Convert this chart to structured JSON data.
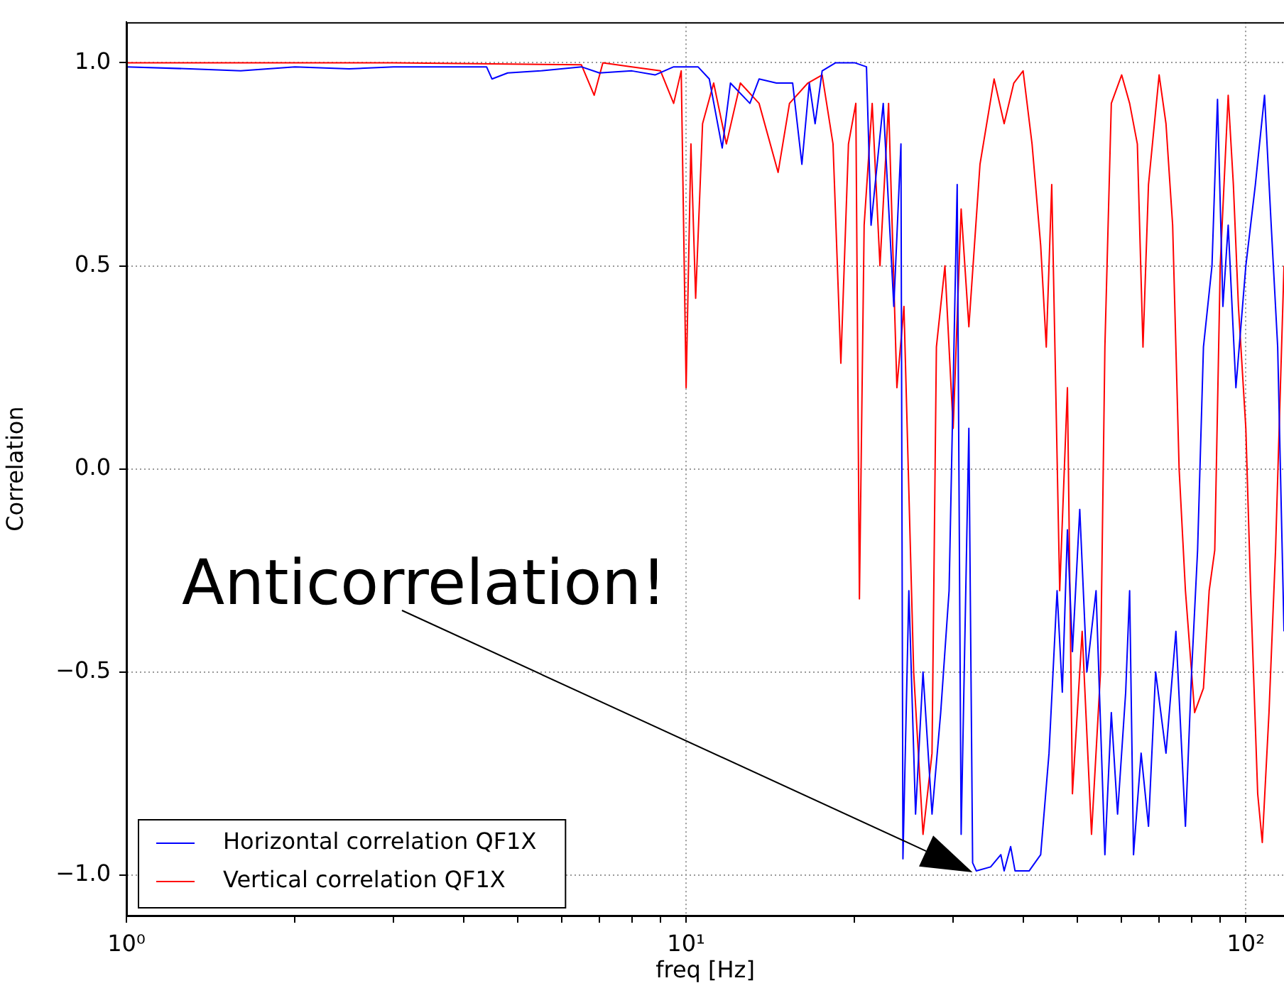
{
  "chart_data": {
    "type": "line",
    "xlabel": "freq [Hz]",
    "ylabel": "Correlation",
    "log": "x",
    "grid": true,
    "legend": "bottom left",
    "marker": "none",
    "line_style": "solid",
    "xlim": [
      1,
      117
    ],
    "ylim": [
      -1.1,
      1.1
    ],
    "xticks": [
      {
        "value": 1,
        "label": "10⁰"
      },
      {
        "value": 2,
        "label": null
      },
      {
        "value": 3,
        "label": null
      },
      {
        "value": 4,
        "label": null
      },
      {
        "value": 5,
        "label": null
      },
      {
        "value": 6,
        "label": null
      },
      {
        "value": 7,
        "label": null
      },
      {
        "value": 8,
        "label": null
      },
      {
        "value": 9,
        "label": null
      },
      {
        "value": 10,
        "label": "10¹"
      },
      {
        "value": 20,
        "label": null
      },
      {
        "value": 30,
        "label": null
      },
      {
        "value": 40,
        "label": null
      },
      {
        "value": 50,
        "label": null
      },
      {
        "value": 60,
        "label": null
      },
      {
        "value": 70,
        "label": null
      },
      {
        "value": 80,
        "label": null
      },
      {
        "value": 90,
        "label": null
      },
      {
        "value": 100,
        "label": "10²"
      }
    ],
    "yticks": [
      {
        "value": -1,
        "label": "−1.0"
      },
      {
        "value": -0.5,
        "label": "−0.5"
      },
      {
        "value": 0,
        "label": "0.0"
      },
      {
        "value": 0.5,
        "label": "0.5"
      },
      {
        "value": 1,
        "label": "1.0"
      }
    ],
    "annotations": [
      "Anticorrelation!"
    ],
    "series": [
      {
        "name": "Horizontal correlation QF1X",
        "color": "#0000ff",
        "x": [
          1,
          1.3,
          1.6,
          2,
          2.5,
          3,
          3.5,
          4,
          4.4,
          4.5,
          4.8,
          5.5,
          6.5,
          7,
          8,
          8.8,
          9.5,
          10.5,
          11,
          11.6,
          12,
          13,
          13.5,
          14.5,
          15.5,
          16.1,
          16.6,
          17,
          17.5,
          18.5,
          20,
          21,
          21.4,
          22.5,
          23.5,
          24.2,
          24.4,
          25,
          25.7,
          26.5,
          27.5,
          28.5,
          29.5,
          30.5,
          31,
          32,
          32.5,
          33,
          35,
          36.5,
          37,
          38,
          38.7,
          41,
          43,
          44.5,
          46,
          47,
          48,
          49,
          50.5,
          52,
          54,
          56,
          57.5,
          59,
          61,
          62,
          63,
          65,
          67,
          69,
          72,
          75,
          78,
          80,
          82,
          84,
          87,
          89,
          91,
          93,
          96,
          100,
          104,
          108,
          111,
          114,
          117
        ],
        "values": [
          0.99,
          0.985,
          0.98,
          0.99,
          0.985,
          0.99,
          0.99,
          0.99,
          0.99,
          0.96,
          0.975,
          0.98,
          0.99,
          0.975,
          0.98,
          0.97,
          0.99,
          0.99,
          0.96,
          0.79,
          0.95,
          0.9,
          0.96,
          0.95,
          0.95,
          0.75,
          0.95,
          0.85,
          0.98,
          1.0,
          1.0,
          0.99,
          0.6,
          0.9,
          0.4,
          0.8,
          -0.96,
          -0.3,
          -0.85,
          -0.5,
          -0.85,
          -0.6,
          -0.3,
          0.7,
          -0.9,
          0.1,
          -0.97,
          -0.99,
          -0.98,
          -0.95,
          -0.99,
          -0.93,
          -0.99,
          -0.99,
          -0.95,
          -0.7,
          -0.3,
          -0.55,
          -0.15,
          -0.45,
          -0.1,
          -0.5,
          -0.3,
          -0.95,
          -0.6,
          -0.85,
          -0.55,
          -0.3,
          -0.95,
          -0.7,
          -0.88,
          -0.5,
          -0.7,
          -0.4,
          -0.88,
          -0.5,
          -0.2,
          0.3,
          0.5,
          0.91,
          0.4,
          0.6,
          0.2,
          0.5,
          0.7,
          0.92,
          0.6,
          0.3,
          -0.4
        ]
      },
      {
        "name": "Vertical correlation QF1X",
        "color": "#ff0000",
        "x": [
          1,
          3,
          6.5,
          6.85,
          7.1,
          8,
          9,
          9.5,
          9.8,
          10,
          10.2,
          10.4,
          10.7,
          11.2,
          11.8,
          12.5,
          13.5,
          14.6,
          15.3,
          16.5,
          17.5,
          18.3,
          18.9,
          19.5,
          20.1,
          20.4,
          20.8,
          21.5,
          22.2,
          23,
          23.8,
          24.5,
          25.5,
          26.5,
          27.5,
          28,
          29,
          30,
          31,
          32,
          33.5,
          35.5,
          37,
          38.5,
          40,
          41.5,
          43,
          44,
          45,
          46.5,
          48,
          49,
          51,
          53,
          55,
          56,
          57.5,
          60,
          62,
          64,
          65.5,
          67,
          70,
          72,
          74,
          76,
          78,
          81,
          84,
          86,
          88,
          90,
          93,
          95,
          97,
          100,
          102,
          105,
          107,
          110,
          113,
          117
        ],
        "values": [
          1.0,
          1.0,
          0.995,
          0.92,
          1.0,
          0.99,
          0.98,
          0.9,
          0.98,
          0.2,
          0.8,
          0.42,
          0.85,
          0.95,
          0.8,
          0.95,
          0.9,
          0.73,
          0.9,
          0.95,
          0.97,
          0.8,
          0.26,
          0.8,
          0.9,
          -0.32,
          0.6,
          0.9,
          0.5,
          0.9,
          0.2,
          0.4,
          -0.5,
          -0.9,
          -0.7,
          0.3,
          0.5,
          0.1,
          0.64,
          0.35,
          0.75,
          0.96,
          0.85,
          0.95,
          0.98,
          0.8,
          0.55,
          0.3,
          0.7,
          -0.3,
          0.2,
          -0.8,
          -0.4,
          -0.9,
          -0.5,
          0.3,
          0.9,
          0.97,
          0.9,
          0.8,
          0.3,
          0.7,
          0.97,
          0.85,
          0.6,
          0.0,
          -0.3,
          -0.6,
          -0.54,
          -0.3,
          -0.2,
          0.5,
          0.92,
          0.7,
          0.4,
          0.1,
          -0.3,
          -0.8,
          -0.92,
          -0.6,
          -0.2,
          0.5
        ]
      }
    ]
  }
}
